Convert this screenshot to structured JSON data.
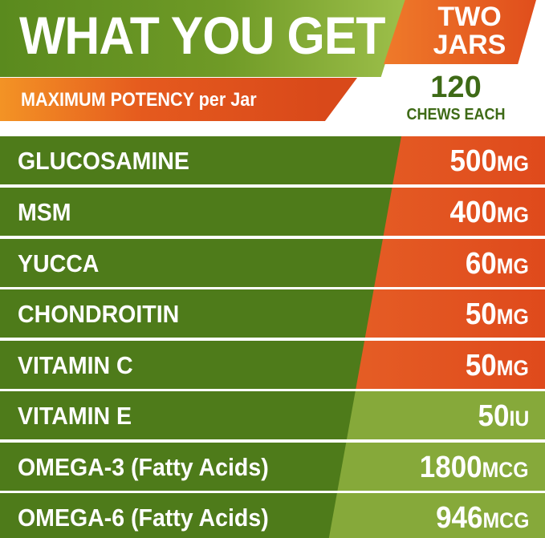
{
  "header": {
    "title": "WHAT YOU GET",
    "badge_line1": "TWO",
    "badge_line2": "JARS",
    "potency": "MAXIMUM POTENCY per Jar",
    "count": "120",
    "count_label": "CHEWS EACH"
  },
  "colors": {
    "dark_green": "#4e7b1a",
    "light_green": "#86a93a",
    "orange": "#e8682a",
    "text_green": "#3e6a16"
  },
  "ingredients": [
    {
      "name": "GLUCOSAMINE",
      "amount": "500",
      "unit": "MG",
      "style": "orange"
    },
    {
      "name": "MSM",
      "amount": "400",
      "unit": "MG",
      "style": "orange"
    },
    {
      "name": "YUCCA",
      "amount": "60",
      "unit": "MG",
      "style": "orange"
    },
    {
      "name": "CHONDROITIN",
      "amount": "50",
      "unit": "MG",
      "style": "orange"
    },
    {
      "name": "VITAMIN C",
      "amount": "50",
      "unit": "MG",
      "style": "orange"
    },
    {
      "name": "VITAMIN E",
      "amount": "50",
      "unit": "IU",
      "style": "green"
    },
    {
      "name": "OMEGA-3  (Fatty Acids)",
      "amount": "1800",
      "unit": "MCG",
      "style": "green"
    },
    {
      "name": "OMEGA-6 (Fatty Acids)",
      "amount": "946",
      "unit": "MCG",
      "style": "green"
    }
  ]
}
